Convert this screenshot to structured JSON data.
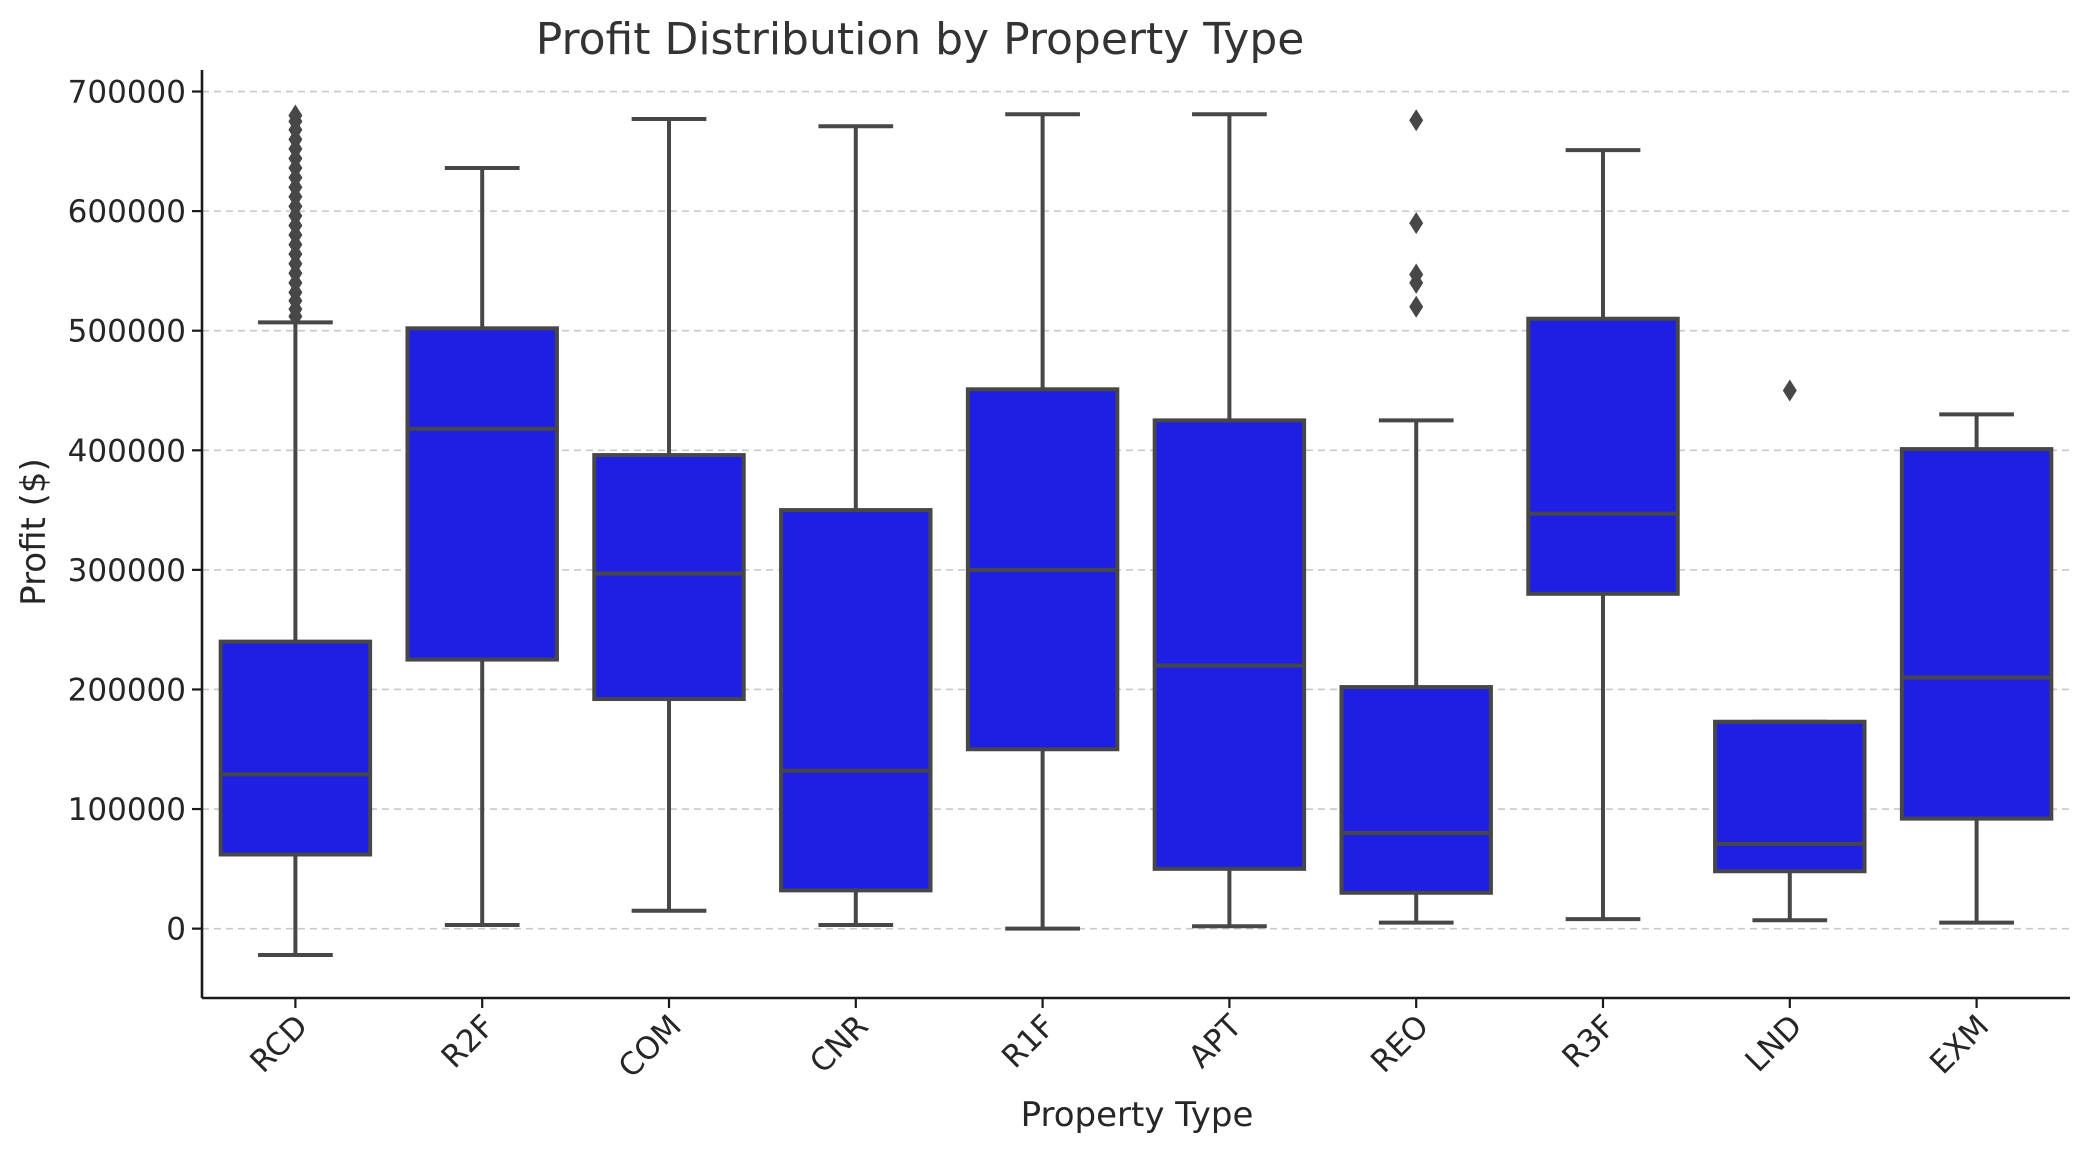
{
  "chart_data": {
    "type": "box",
    "title": "Profit Distribution by Property Type",
    "xlabel": "Property Type",
    "ylabel": "Profit ($)",
    "ylim": [
      -58000,
      718000
    ],
    "yticks": [
      0,
      100000,
      200000,
      300000,
      400000,
      500000,
      600000,
      700000
    ],
    "grid": "horizontal dashed",
    "box_color": "#1f1fe3",
    "line_color": "#474747",
    "categories": [
      "RCD",
      "R2F",
      "COM",
      "CNR",
      "R1F",
      "APT",
      "REO",
      "R3F",
      "LND",
      "EXM"
    ],
    "boxes": [
      {
        "label": "RCD",
        "whislo": -22000,
        "q1": 62000,
        "med": 129000,
        "q3": 240000,
        "whishi": 507000,
        "fliers": [
          512000,
          518000,
          525000,
          532000,
          540000,
          548000,
          556000,
          564000,
          572000,
          580000,
          588000,
          596000,
          604000,
          612000,
          620000,
          628000,
          636000,
          644000,
          652000,
          660000,
          668000,
          675000,
          680000
        ]
      },
      {
        "label": "R2F",
        "whislo": 3000,
        "q1": 225000,
        "med": 418000,
        "q3": 502000,
        "whishi": 636000,
        "fliers": []
      },
      {
        "label": "COM",
        "whislo": 15000,
        "q1": 192000,
        "med": 297000,
        "q3": 396000,
        "whishi": 677000,
        "fliers": []
      },
      {
        "label": "CNR",
        "whislo": 3000,
        "q1": 32000,
        "med": 132000,
        "q3": 350000,
        "whishi": 671000,
        "fliers": []
      },
      {
        "label": "R1F",
        "whislo": 0,
        "q1": 150000,
        "med": 300000,
        "q3": 451000,
        "whishi": 681000,
        "fliers": []
      },
      {
        "label": "APT",
        "whislo": 2000,
        "q1": 50000,
        "med": 220000,
        "q3": 425000,
        "whishi": 681000,
        "fliers": []
      },
      {
        "label": "REO",
        "whislo": 5000,
        "q1": 30000,
        "med": 80000,
        "q3": 202000,
        "whishi": 425000,
        "fliers": [
          520000,
          540000,
          547000,
          590000,
          676000
        ]
      },
      {
        "label": "R3F",
        "whislo": 8000,
        "q1": 280000,
        "med": 347000,
        "q3": 510000,
        "whishi": 651000,
        "fliers": []
      },
      {
        "label": "LND",
        "whislo": 7000,
        "q1": 48000,
        "med": 71000,
        "q3": 173000,
        "whishi": 173000,
        "fliers": [
          450000
        ]
      },
      {
        "label": "EXM",
        "whislo": 5000,
        "q1": 92000,
        "med": 210000,
        "q3": 401000,
        "whishi": 430000,
        "fliers": []
      }
    ]
  }
}
